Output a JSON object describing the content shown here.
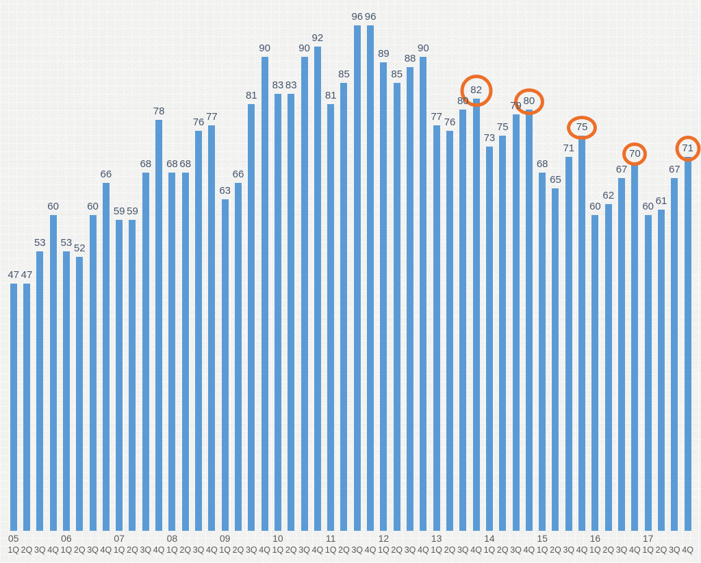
{
  "chart": {
    "bar_color": "#5B9BD5",
    "label_color": "#44546A",
    "axis_label_color": "#595959",
    "highlight_color": "#ED6F28"
  },
  "chart_data": {
    "type": "bar",
    "title": "",
    "xlabel": "",
    "ylabel": "",
    "ylim": [
      0,
      100
    ],
    "grid": false,
    "legend": false,
    "x_axis": {
      "year_labels": [
        "05",
        "06",
        "07",
        "08",
        "09",
        "10",
        "11",
        "12",
        "13",
        "14",
        "15",
        "16",
        "17"
      ],
      "quarter_pattern": [
        "1Q",
        "2Q",
        "3Q",
        "4Q"
      ]
    },
    "annotation_style": "orange ellipse circles highlight 4Q values of years 13-17",
    "points": [
      {
        "year": "05",
        "quarter": "1Q",
        "value": 47
      },
      {
        "year": "05",
        "quarter": "2Q",
        "value": 47
      },
      {
        "year": "05",
        "quarter": "3Q",
        "value": 53
      },
      {
        "year": "05",
        "quarter": "4Q",
        "value": 60
      },
      {
        "year": "06",
        "quarter": "1Q",
        "value": 53
      },
      {
        "year": "06",
        "quarter": "2Q",
        "value": 52
      },
      {
        "year": "06",
        "quarter": "3Q",
        "value": 60
      },
      {
        "year": "06",
        "quarter": "4Q",
        "value": 66
      },
      {
        "year": "07",
        "quarter": "1Q",
        "value": 59
      },
      {
        "year": "07",
        "quarter": "2Q",
        "value": 59
      },
      {
        "year": "07",
        "quarter": "3Q",
        "value": 68
      },
      {
        "year": "07",
        "quarter": "4Q",
        "value": 78
      },
      {
        "year": "08",
        "quarter": "1Q",
        "value": 68
      },
      {
        "year": "08",
        "quarter": "2Q",
        "value": 68
      },
      {
        "year": "08",
        "quarter": "3Q",
        "value": 76
      },
      {
        "year": "08",
        "quarter": "4Q",
        "value": 77
      },
      {
        "year": "09",
        "quarter": "1Q",
        "value": 63
      },
      {
        "year": "09",
        "quarter": "2Q",
        "value": 66
      },
      {
        "year": "09",
        "quarter": "3Q",
        "value": 81
      },
      {
        "year": "09",
        "quarter": "4Q",
        "value": 90
      },
      {
        "year": "10",
        "quarter": "1Q",
        "value": 83
      },
      {
        "year": "10",
        "quarter": "2Q",
        "value": 83
      },
      {
        "year": "10",
        "quarter": "3Q",
        "value": 90
      },
      {
        "year": "10",
        "quarter": "4Q",
        "value": 92
      },
      {
        "year": "11",
        "quarter": "1Q",
        "value": 81
      },
      {
        "year": "11",
        "quarter": "2Q",
        "value": 85
      },
      {
        "year": "11",
        "quarter": "3Q",
        "value": 96
      },
      {
        "year": "11",
        "quarter": "4Q",
        "value": 96
      },
      {
        "year": "12",
        "quarter": "1Q",
        "value": 89
      },
      {
        "year": "12",
        "quarter": "2Q",
        "value": 85
      },
      {
        "year": "12",
        "quarter": "3Q",
        "value": 88
      },
      {
        "year": "12",
        "quarter": "4Q",
        "value": 90
      },
      {
        "year": "13",
        "quarter": "1Q",
        "value": 77
      },
      {
        "year": "13",
        "quarter": "2Q",
        "value": 76
      },
      {
        "year": "13",
        "quarter": "3Q",
        "value": 80
      },
      {
        "year": "13",
        "quarter": "4Q",
        "value": 82,
        "circled": true,
        "ring": [
          47,
          47
        ]
      },
      {
        "year": "14",
        "quarter": "1Q",
        "value": 73
      },
      {
        "year": "14",
        "quarter": "2Q",
        "value": 75
      },
      {
        "year": "14",
        "quarter": "3Q",
        "value": 79
      },
      {
        "year": "14",
        "quarter": "4Q",
        "value": 80,
        "circled": true,
        "ring": [
          44,
          39
        ]
      },
      {
        "year": "15",
        "quarter": "1Q",
        "value": 68
      },
      {
        "year": "15",
        "quarter": "2Q",
        "value": 65
      },
      {
        "year": "15",
        "quarter": "3Q",
        "value": 71
      },
      {
        "year": "15",
        "quarter": "4Q",
        "value": 75,
        "circled": true,
        "ring": [
          44,
          35
        ]
      },
      {
        "year": "16",
        "quarter": "1Q",
        "value": 60
      },
      {
        "year": "16",
        "quarter": "2Q",
        "value": 62
      },
      {
        "year": "16",
        "quarter": "3Q",
        "value": 67
      },
      {
        "year": "16",
        "quarter": "4Q",
        "value": 70,
        "circled": true,
        "ring": [
          36,
          34
        ]
      },
      {
        "year": "17",
        "quarter": "1Q",
        "value": 60
      },
      {
        "year": "17",
        "quarter": "2Q",
        "value": 61
      },
      {
        "year": "17",
        "quarter": "3Q",
        "value": 67
      },
      {
        "year": "17",
        "quarter": "4Q",
        "value": 71,
        "circled": true,
        "ring": [
          37,
          38
        ]
      }
    ]
  }
}
